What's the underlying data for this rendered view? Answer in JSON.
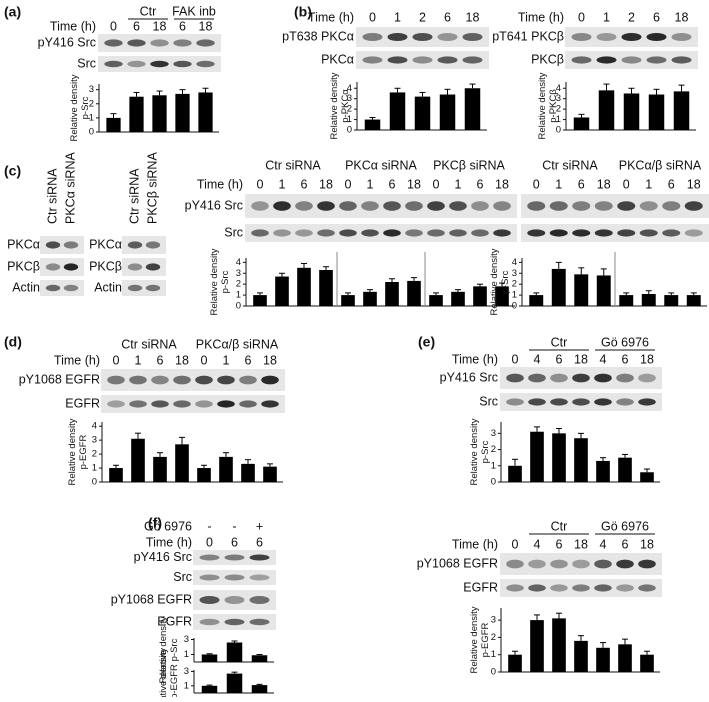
{
  "panels": [
    {
      "label": "(a)",
      "blocks": [
        {
          "header_rows": [
            {
              "title": "Time (h)",
              "groups": [
                {
                  "lanes": [
                    "0"
                  ]
                },
                {
                  "name": "Ctr",
                  "lanes": [
                    "6",
                    "18"
                  ]
                },
                {
                  "name": "FAK inb",
                  "lanes": [
                    "6",
                    "18"
                  ]
                }
              ]
            }
          ],
          "rows": [
            "pY416 Src",
            "Src"
          ],
          "charts": [
            {
              "ylabel": [
                "Relative density",
                "p-Src"
              ],
              "ylim": [
                0,
                3.4
              ],
              "yticks": [
                0,
                1,
                2,
                3
              ],
              "values": [
                1,
                2.5,
                2.6,
                2.7,
                2.8
              ],
              "errors": [
                0.3,
                0.3,
                0.3,
                0.3,
                0.3
              ]
            }
          ]
        }
      ]
    },
    {
      "label": "(b)",
      "blocks": [
        {
          "header_rows": [
            {
              "title": "Time (h)",
              "groups": [
                {
                  "lanes": [
                    "0",
                    "1",
                    "2",
                    "6",
                    "18"
                  ]
                }
              ]
            }
          ],
          "rows": [
            "pT638 PKCα",
            "PKCα"
          ],
          "charts": [
            {
              "ylabel": [
                "Relative density",
                "p-PKCα"
              ],
              "ylim": [
                0,
                4.6
              ],
              "yticks": [
                0,
                1,
                2,
                3,
                4
              ],
              "values": [
                1,
                3.6,
                3.2,
                3.4,
                4.0
              ],
              "errors": [
                0.2,
                0.4,
                0.4,
                0.5,
                0.4
              ]
            }
          ]
        },
        {
          "header_rows": [
            {
              "title": "Time (h)",
              "groups": [
                {
                  "lanes": [
                    "0",
                    "1",
                    "2",
                    "6",
                    "18"
                  ]
                }
              ]
            }
          ],
          "rows": [
            "pT641 PKCβ",
            "PKCβ"
          ],
          "charts": [
            {
              "ylabel": [
                "Relative density",
                "p-PKCβ"
              ],
              "ylim": [
                0,
                4.6
              ],
              "yticks": [
                0,
                1,
                2,
                3,
                4
              ],
              "values": [
                1.2,
                3.8,
                3.5,
                3.4,
                3.7
              ],
              "errors": [
                0.3,
                0.6,
                0.5,
                0.5,
                0.6
              ]
            }
          ]
        }
      ]
    },
    {
      "label": "(c)",
      "blocks": [
        {
          "columns": [
            "Ctr siRNA",
            "PKCα siRNA"
          ],
          "rows": [
            "PKCα",
            "PKCβ",
            "Actin"
          ]
        },
        {
          "columns": [
            "Ctr siRNA",
            "PKCβ siRNA"
          ],
          "rows": [
            "PKCα",
            "PKCβ",
            "Actin"
          ]
        },
        {
          "header_rows": [
            {
              "title": "Time (h)",
              "groups": [
                {
                  "name": "Ctr siRNA",
                  "lanes": [
                    "0",
                    "1",
                    "6",
                    "18"
                  ]
                },
                {
                  "name": "PKCα siRNA",
                  "lanes": [
                    "0",
                    "1",
                    "6",
                    "18"
                  ]
                },
                {
                  "name": "PKCβ siRNA",
                  "lanes": [
                    "0",
                    "1",
                    "6",
                    "18"
                  ]
                }
              ]
            }
          ],
          "rows": [
            "pY416 Src",
            "Src"
          ],
          "charts": [
            {
              "ylabel": [
                "Relative density",
                "p-Src"
              ],
              "ylim": [
                0,
                4.4
              ],
              "yticks": [
                0,
                1,
                2,
                3,
                4
              ],
              "values": [
                1,
                2.7,
                3.5,
                3.3,
                1,
                1.3,
                2.2,
                2.3,
                1,
                1.3,
                1.8,
                1.8
              ],
              "errors": [
                0.2,
                0.3,
                0.4,
                0.3,
                0.2,
                0.2,
                0.3,
                0.3,
                0.2,
                0.2,
                0.2,
                0.3
              ]
            }
          ]
        },
        {
          "header_rows": [
            {
              "groups": [
                {
                  "name": "Ctr siRNA",
                  "lanes": [
                    "0",
                    "1",
                    "6",
                    "18"
                  ]
                },
                {
                  "name": "PKCα/β siRNA",
                  "lanes": [
                    "0",
                    "1",
                    "6",
                    "18"
                  ]
                }
              ]
            }
          ],
          "charts": [
            {
              "ylabel": [
                "Relative density",
                "p-Src"
              ],
              "ylim": [
                0,
                4.4
              ],
              "yticks": [
                0,
                1,
                2,
                3,
                4
              ],
              "values": [
                1,
                3.4,
                2.9,
                2.8,
                1,
                1.1,
                1,
                1
              ],
              "errors": [
                0.2,
                0.6,
                0.6,
                0.6,
                0.2,
                0.3,
                0.2,
                0.2
              ]
            }
          ]
        }
      ]
    },
    {
      "label": "(d)",
      "blocks": [
        {
          "header_rows": [
            {
              "title": "Time (h)",
              "groups": [
                {
                  "name": "Ctr siRNA",
                  "lanes": [
                    "0",
                    "1",
                    "6",
                    "18"
                  ]
                },
                {
                  "name": "PKCα/β siRNA",
                  "lanes": [
                    "0",
                    "1",
                    "6",
                    "18"
                  ]
                }
              ]
            }
          ],
          "rows": [
            "pY1068 EGFR",
            "EGFR"
          ],
          "charts": [
            {
              "ylabel": [
                "Relative density",
                "p-EGFR"
              ],
              "ylim": [
                0,
                4.3
              ],
              "yticks": [
                0,
                1,
                2,
                3,
                4
              ],
              "values": [
                1,
                3.1,
                1.8,
                2.7,
                1,
                1.8,
                1.3,
                1.1
              ],
              "errors": [
                0.2,
                0.4,
                0.3,
                0.5,
                0.2,
                0.3,
                0.3,
                0.2
              ]
            }
          ]
        }
      ]
    },
    {
      "label": "(e)",
      "blocks": [
        {
          "header_rows": [
            {
              "title": "Time (h)",
              "groups": [
                {
                  "lanes": [
                    "0"
                  ]
                },
                {
                  "name": "Ctr",
                  "lanes": [
                    "4",
                    "6",
                    "18"
                  ]
                },
                {
                  "name": "Gö 6976",
                  "lanes": [
                    "4",
                    "6",
                    "18"
                  ]
                }
              ]
            }
          ],
          "rows": [
            "pY416 Src",
            "Src"
          ],
          "charts": [
            {
              "ylabel": [
                "Relative density",
                "p-Src"
              ],
              "ylim": [
                0,
                3.7
              ],
              "yticks": [
                0,
                1,
                2,
                3
              ],
              "values": [
                1,
                3.1,
                3.0,
                2.7,
                1.3,
                1.5,
                0.6
              ],
              "errors": [
                0.4,
                0.3,
                0.3,
                0.3,
                0.2,
                0.2,
                0.2
              ]
            }
          ]
        },
        {
          "header_rows": [
            {
              "title": "Time (h)",
              "groups": [
                {
                  "lanes": [
                    "0"
                  ]
                },
                {
                  "name": "Ctr",
                  "lanes": [
                    "4",
                    "6",
                    "18"
                  ]
                },
                {
                  "name": "Gö 6976",
                  "lanes": [
                    "4",
                    "6",
                    "18"
                  ]
                }
              ]
            }
          ],
          "rows": [
            "pY1068 EGFR",
            "EGFR"
          ],
          "charts": [
            {
              "ylabel": [
                "Relative density",
                "p-EGFR"
              ],
              "ylim": [
                0,
                3.7
              ],
              "yticks": [
                0,
                1,
                2,
                3
              ],
              "values": [
                1,
                3.0,
                3.1,
                1.8,
                1.4,
                1.6,
                1.0
              ],
              "errors": [
                0.2,
                0.3,
                0.3,
                0.3,
                0.3,
                0.3,
                0.2
              ]
            }
          ]
        }
      ]
    },
    {
      "label": "(f)",
      "blocks": [
        {
          "header_rows": [
            {
              "title": "Gö 6976",
              "groups": [
                {
                  "lanes": [
                    "-",
                    "-",
                    "+"
                  ]
                }
              ]
            },
            {
              "title": "Time (h)",
              "groups": [
                {
                  "lanes": [
                    "0",
                    "6",
                    "6"
                  ]
                }
              ]
            }
          ],
          "rows": [
            "pY416 Src",
            "Src",
            "pY1068 EGFR",
            "EGFR"
          ],
          "charts": [
            {
              "ylabel": [
                "Relative density",
                "p-Src"
              ],
              "ylim": [
                0,
                3.2
              ],
              "yticks": [
                1,
                3
              ],
              "values": [
                1,
                2.6,
                0.9
              ],
              "errors": [
                0.1,
                0.2,
                0.1
              ]
            },
            {
              "ylabel": [
                "Relative density",
                "p-EGFR"
              ],
              "ylim": [
                0,
                3.2
              ],
              "yticks": [
                1,
                3
              ],
              "values": [
                1,
                2.7,
                1.1
              ],
              "errors": [
                0.1,
                0.2,
                0.1
              ]
            }
          ]
        }
      ]
    }
  ]
}
